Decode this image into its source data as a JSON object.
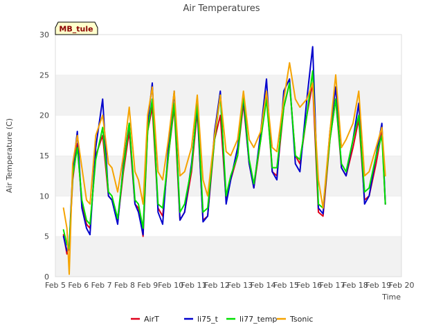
{
  "chart_data": {
    "type": "line",
    "title": "Air Temperatures",
    "site_label": "MB_tule",
    "xlabel": "Time",
    "ylabel": "Air Temperature (C)",
    "ylim": [
      0,
      30
    ],
    "yticks": [
      0,
      5,
      10,
      15,
      20,
      25,
      30
    ],
    "xlim": [
      "Feb 5",
      "Feb 20"
    ],
    "xticks": [
      "Feb 5",
      "Feb 6",
      "Feb 7",
      "Feb 8",
      "Feb 9",
      "Feb 10",
      "Feb 11",
      "Feb 12",
      "Feb 13",
      "Feb 14",
      "Feb 15",
      "Feb 16",
      "Feb 17",
      "Feb 18",
      "Feb 19",
      "Feb 20"
    ],
    "grid": "horizontal bands",
    "legend_position": "bottom",
    "x_unit": "days from Feb 5",
    "series": [
      {
        "name": "AirT",
        "color": "#e0001b",
        "x": [
          0.35,
          0.5,
          0.6,
          0.75,
          0.95,
          1.15,
          1.35,
          1.5,
          1.75,
          2.05,
          2.3,
          2.45,
          2.7,
          2.95,
          3.2,
          3.45,
          3.6,
          3.8,
          4.0,
          4.2,
          4.45,
          4.65,
          4.9,
          5.15,
          5.4,
          5.6,
          5.9,
          6.15,
          6.4,
          6.6,
          6.9,
          7.15,
          7.4,
          7.6,
          7.9,
          8.15,
          8.4,
          8.6,
          8.9,
          9.15,
          9.4,
          9.6,
          9.9,
          10.15,
          10.4,
          10.6,
          10.9,
          11.15,
          11.4,
          11.6,
          11.9,
          12.15,
          12.4,
          12.6,
          12.9,
          13.15,
          13.4,
          13.6,
          13.9,
          14.15,
          14.3
        ],
        "y": [
          5.2,
          2.8,
          3.5,
          12,
          16.5,
          9,
          6.5,
          6,
          15,
          17.5,
          10,
          9.5,
          6.8,
          13,
          18,
          9,
          8.5,
          5,
          18,
          21,
          8.5,
          7.5,
          15,
          21,
          7,
          8,
          13,
          20.5,
          7,
          7.5,
          17,
          20,
          9.5,
          12,
          15,
          21.5,
          14,
          11,
          17,
          22.5,
          13,
          12.5,
          21,
          24,
          15,
          14,
          20,
          24,
          8,
          7.5,
          17,
          22,
          13.5,
          12.5,
          16,
          19.5,
          9.5,
          10,
          14,
          18,
          9
        ]
      },
      {
        "name": "li75_t",
        "color": "#0000cc",
        "x": [
          0.35,
          0.5,
          0.6,
          0.75,
          0.95,
          1.15,
          1.35,
          1.5,
          1.75,
          2.05,
          2.3,
          2.45,
          2.7,
          2.95,
          3.2,
          3.45,
          3.6,
          3.8,
          4.0,
          4.2,
          4.45,
          4.65,
          4.9,
          5.15,
          5.4,
          5.6,
          5.9,
          6.15,
          6.4,
          6.6,
          6.9,
          7.15,
          7.4,
          7.6,
          7.9,
          8.15,
          8.4,
          8.6,
          8.9,
          9.15,
          9.4,
          9.6,
          9.9,
          10.15,
          10.4,
          10.6,
          10.9,
          11.15,
          11.4,
          11.6,
          11.9,
          12.15,
          12.4,
          12.6,
          12.9,
          13.15,
          13.4,
          13.6,
          13.9,
          14.15,
          14.3
        ],
        "y": [
          5,
          3.2,
          3.8,
          13,
          18,
          8.5,
          6,
          5.2,
          16,
          22,
          10,
          9.5,
          6.5,
          14,
          19,
          9,
          8,
          5.2,
          19,
          24,
          8,
          6.5,
          16,
          23,
          7,
          8,
          14,
          21,
          6.8,
          7.5,
          18,
          23,
          9,
          12,
          16,
          22,
          14,
          11,
          18,
          24.5,
          13,
          12,
          23,
          24.5,
          14,
          13,
          22,
          28.5,
          8.5,
          7.8,
          18,
          23.5,
          13.5,
          12.5,
          17,
          21.5,
          9,
          10,
          15,
          19,
          9
        ]
      },
      {
        "name": "li77_temp",
        "color": "#00e000",
        "x": [
          0.35,
          0.5,
          0.6,
          0.75,
          0.95,
          1.15,
          1.35,
          1.5,
          1.75,
          2.05,
          2.3,
          2.45,
          2.7,
          2.95,
          3.2,
          3.45,
          3.6,
          3.8,
          4.0,
          4.2,
          4.45,
          4.65,
          4.9,
          5.15,
          5.4,
          5.6,
          5.9,
          6.15,
          6.4,
          6.6,
          6.9,
          7.15,
          7.4,
          7.6,
          7.9,
          8.15,
          8.4,
          8.6,
          8.9,
          9.15,
          9.4,
          9.6,
          9.9,
          10.15,
          10.4,
          10.6,
          10.9,
          11.15,
          11.4,
          11.6,
          11.9,
          12.15,
          12.4,
          12.6,
          12.9,
          13.15,
          13.4,
          13.6,
          13.9,
          14.15,
          14.3
        ],
        "y": [
          5.8,
          4,
          3.5,
          12.5,
          16,
          9.5,
          7,
          6.5,
          14.5,
          18.5,
          10.5,
          10,
          7.2,
          13.5,
          19,
          9.5,
          9,
          6,
          18,
          22,
          9,
          8.5,
          15,
          21.5,
          8,
          9,
          13.5,
          21.5,
          8,
          8.5,
          17,
          22.5,
          10,
          12.5,
          15,
          22.5,
          14.5,
          11.5,
          17,
          22,
          13.5,
          13.5,
          21,
          24,
          15,
          14.5,
          20,
          25.5,
          9,
          8.5,
          17,
          22,
          14,
          13,
          17,
          20,
          10.5,
          11,
          15,
          17.5,
          9
        ]
      },
      {
        "name": "Tsonic",
        "color": "#f5a300",
        "x": [
          0.35,
          0.5,
          0.6,
          0.75,
          0.95,
          1.15,
          1.35,
          1.5,
          1.75,
          2.05,
          2.3,
          2.45,
          2.7,
          2.95,
          3.2,
          3.45,
          3.6,
          3.8,
          4.0,
          4.2,
          4.45,
          4.65,
          4.9,
          5.15,
          5.4,
          5.6,
          5.9,
          6.15,
          6.4,
          6.6,
          6.9,
          7.15,
          7.4,
          7.6,
          7.9,
          8.15,
          8.4,
          8.6,
          8.9,
          9.15,
          9.4,
          9.6,
          9.9,
          10.15,
          10.4,
          10.6,
          10.9,
          11.15,
          11.4,
          11.6,
          11.9,
          12.15,
          12.4,
          12.6,
          12.9,
          13.15,
          13.4,
          13.6,
          13.9,
          14.15,
          14.3
        ],
        "y": [
          8.5,
          6,
          0.3,
          14,
          17.5,
          13.5,
          9.5,
          9,
          17.5,
          20,
          14,
          13.5,
          10.5,
          15,
          21,
          13,
          12,
          9,
          20,
          23.5,
          13,
          12,
          17,
          23,
          12.5,
          13,
          16,
          22.5,
          12,
          10,
          17.5,
          22.5,
          15.5,
          15,
          17,
          23,
          17,
          16,
          18,
          23,
          16,
          15.5,
          22,
          26.5,
          22,
          21,
          22,
          24,
          12,
          8.5,
          18,
          25,
          16,
          17,
          19,
          23,
          12.5,
          13,
          16,
          18.5,
          12.5
        ]
      }
    ]
  }
}
